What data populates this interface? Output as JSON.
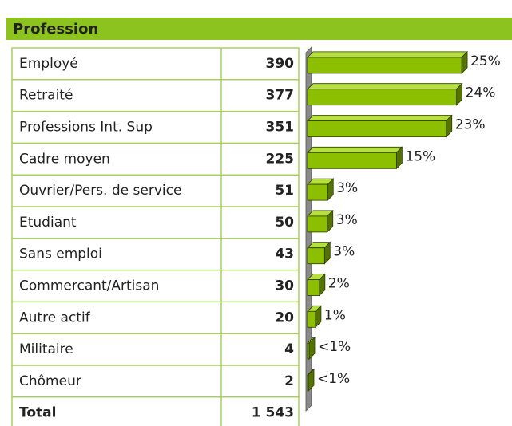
{
  "chart_data": {
    "type": "bar",
    "title": "Profession",
    "categories": [
      "Employé",
      "Retraité",
      "Professions Int. Sup",
      "Cadre moyen",
      "Ouvrier/Pers. de service",
      "Etudiant",
      "Sans emploi",
      "Commercant/Artisan",
      "Autre actif",
      "Militaire",
      "Chômeur"
    ],
    "values": [
      390,
      377,
      351,
      225,
      51,
      50,
      43,
      30,
      20,
      4,
      2
    ],
    "value_labels": [
      "25%",
      "24%",
      "23%",
      "15%",
      "3%",
      "3%",
      "3%",
      "2%",
      "1%",
      "<1%",
      "<1%"
    ],
    "total_label": "Total",
    "total": "1 543",
    "color": "#8cbf00",
    "xlim": [
      0,
      400
    ]
  }
}
